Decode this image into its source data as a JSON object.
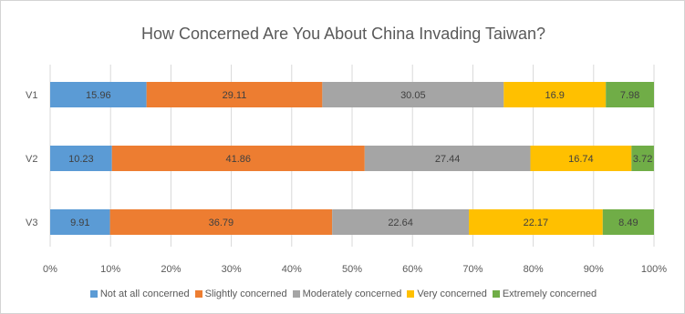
{
  "chart_data": {
    "type": "bar",
    "orientation": "horizontal",
    "stacked": true,
    "title": "How Concerned Are  You About China Invading Taiwan?",
    "categories": [
      "V1",
      "V2",
      "V3"
    ],
    "series": [
      {
        "name": "Not at all concerned",
        "color": "#5b9bd5",
        "values": [
          15.96,
          10.23,
          9.91
        ]
      },
      {
        "name": "Slightly concerned",
        "color": "#ed7d31",
        "values": [
          29.11,
          41.86,
          36.79
        ]
      },
      {
        "name": "Moderately concerned",
        "color": "#a5a5a5",
        "values": [
          30.05,
          27.44,
          22.64
        ]
      },
      {
        "name": "Very concerned",
        "color": "#ffc000",
        "values": [
          16.9,
          16.74,
          22.17
        ]
      },
      {
        "name": "Extremely concerned",
        "color": "#70ad47",
        "values": [
          7.98,
          3.72,
          8.49
        ]
      }
    ],
    "data_labels": [
      [
        "15.96",
        "10.23",
        "9.91"
      ],
      [
        "29.11",
        "41.86",
        "36.79"
      ],
      [
        "30.05",
        "27.44",
        "22.64"
      ],
      [
        "16.9",
        "16.74",
        "22.17"
      ],
      [
        "7.98",
        "3.72",
        "8.49"
      ]
    ],
    "xlim": [
      0,
      100
    ],
    "x_ticks": [
      "0%",
      "10%",
      "20%",
      "30%",
      "40%",
      "50%",
      "60%",
      "70%",
      "80%",
      "90%",
      "100%"
    ],
    "grid": true,
    "legend_position": "bottom"
  }
}
